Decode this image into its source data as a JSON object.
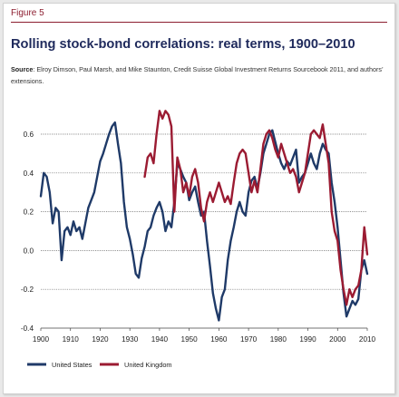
{
  "figure": {
    "label": "Figure 5",
    "title": "Rolling stock-bond correlations: real terms, 1900–2010",
    "source_label": "Source",
    "source_text": ": Elroy Dimson, Paul Marsh, and Mike Staunton, Credit Suisse Global Investment Returns Source­book 2011, and authors’ extensions."
  },
  "chart_data": {
    "type": "line",
    "title": "Rolling stock-bond correlations: real terms, 1900–2010",
    "xlabel": "",
    "ylabel": "",
    "xlim": [
      1900,
      2011
    ],
    "ylim": [
      -0.4,
      0.72
    ],
    "x_ticks": [
      1900,
      1910,
      1920,
      1930,
      1940,
      1950,
      1960,
      1970,
      1980,
      1990,
      2000,
      2010
    ],
    "y_ticks": [
      -0.4,
      -0.2,
      0.0,
      0.2,
      0.4,
      0.6
    ],
    "y_tick_labels": [
      "-0.4",
      "-0.2",
      "0.0",
      "0.2",
      "0.4",
      "0.6"
    ],
    "grid": "horizontal dashed",
    "legend_position": "bottom-left",
    "series": [
      {
        "name": "United States",
        "color": "#1f3a68",
        "x": [
          1900,
          1901,
          1902,
          1903,
          1904,
          1905,
          1906,
          1907,
          1908,
          1909,
          1910,
          1911,
          1912,
          1913,
          1914,
          1915,
          1916,
          1917,
          1918,
          1919,
          1920,
          1921,
          1922,
          1923,
          1924,
          1925,
          1926,
          1927,
          1928,
          1929,
          1930,
          1931,
          1932,
          1933,
          1934,
          1935,
          1936,
          1937,
          1938,
          1939,
          1940,
          1941,
          1942,
          1943,
          1944,
          1945,
          1946,
          1947,
          1948,
          1949,
          1950,
          1951,
          1952,
          1953,
          1954,
          1955,
          1956,
          1957,
          1958,
          1959,
          1960,
          1961,
          1962,
          1963,
          1964,
          1965,
          1966,
          1967,
          1968,
          1969,
          1970,
          1971,
          1972,
          1973,
          1974,
          1975,
          1976,
          1977,
          1978,
          1979,
          1980,
          1981,
          1982,
          1983,
          1984,
          1985,
          1986,
          1987,
          1988,
          1989,
          1990,
          1991,
          1992,
          1993,
          1994,
          1995,
          1996,
          1997,
          1998,
          1999,
          2000,
          2001,
          2002,
          2003,
          2004,
          2005,
          2006,
          2007,
          2008,
          2009,
          2010
        ],
        "values": [
          0.28,
          0.4,
          0.38,
          0.3,
          0.14,
          0.22,
          0.2,
          -0.05,
          0.1,
          0.12,
          0.08,
          0.15,
          0.1,
          0.12,
          0.06,
          0.14,
          0.22,
          0.26,
          0.3,
          0.38,
          0.46,
          0.5,
          0.55,
          0.6,
          0.64,
          0.66,
          0.55,
          0.45,
          0.25,
          0.12,
          0.06,
          -0.02,
          -0.12,
          -0.14,
          -0.04,
          0.02,
          0.1,
          0.12,
          0.18,
          0.22,
          0.25,
          0.2,
          0.1,
          0.15,
          0.12,
          0.25,
          0.45,
          0.42,
          0.38,
          0.35,
          0.26,
          0.3,
          0.33,
          0.25,
          0.18,
          0.2,
          0.05,
          -0.08,
          -0.22,
          -0.3,
          -0.36,
          -0.24,
          -0.2,
          -0.05,
          0.05,
          0.12,
          0.2,
          0.25,
          0.2,
          0.18,
          0.3,
          0.36,
          0.38,
          0.32,
          0.4,
          0.5,
          0.55,
          0.6,
          0.62,
          0.56,
          0.5,
          0.45,
          0.42,
          0.46,
          0.44,
          0.48,
          0.52,
          0.35,
          0.38,
          0.4,
          0.45,
          0.5,
          0.45,
          0.42,
          0.5,
          0.55,
          0.52,
          0.5,
          0.35,
          0.25,
          0.12,
          -0.05,
          -0.22,
          -0.34,
          -0.3,
          -0.26,
          -0.28,
          -0.25,
          -0.1,
          -0.05,
          -0.12
        ]
      },
      {
        "name": "United Kingdom",
        "color": "#9b1b32",
        "x": [
          1935,
          1936,
          1937,
          1938,
          1939,
          1940,
          1941,
          1942,
          1943,
          1944,
          1945,
          1946,
          1947,
          1948,
          1949,
          1950,
          1951,
          1952,
          1953,
          1954,
          1955,
          1956,
          1957,
          1958,
          1959,
          1960,
          1961,
          1962,
          1963,
          1964,
          1965,
          1966,
          1967,
          1968,
          1969,
          1970,
          1971,
          1972,
          1973,
          1974,
          1975,
          1976,
          1977,
          1978,
          1979,
          1980,
          1981,
          1982,
          1983,
          1984,
          1985,
          1986,
          1987,
          1988,
          1989,
          1990,
          1991,
          1992,
          1993,
          1994,
          1995,
          1996,
          1997,
          1998,
          1999,
          2000,
          2001,
          2002,
          2003,
          2004,
          2005,
          2006,
          2007,
          2008,
          2009,
          2010
        ],
        "values": [
          0.38,
          0.48,
          0.5,
          0.45,
          0.6,
          0.72,
          0.68,
          0.72,
          0.7,
          0.64,
          0.2,
          0.48,
          0.42,
          0.3,
          0.35,
          0.28,
          0.38,
          0.42,
          0.35,
          0.22,
          0.15,
          0.25,
          0.3,
          0.25,
          0.3,
          0.35,
          0.3,
          0.25,
          0.28,
          0.24,
          0.35,
          0.45,
          0.5,
          0.52,
          0.5,
          0.4,
          0.3,
          0.36,
          0.3,
          0.42,
          0.55,
          0.6,
          0.62,
          0.58,
          0.52,
          0.48,
          0.55,
          0.5,
          0.45,
          0.4,
          0.42,
          0.38,
          0.3,
          0.35,
          0.4,
          0.5,
          0.6,
          0.62,
          0.6,
          0.58,
          0.65,
          0.55,
          0.45,
          0.2,
          0.1,
          0.05,
          -0.1,
          -0.2,
          -0.28,
          -0.2,
          -0.24,
          -0.2,
          -0.18,
          -0.1,
          0.12,
          -0.02
        ]
      }
    ]
  }
}
